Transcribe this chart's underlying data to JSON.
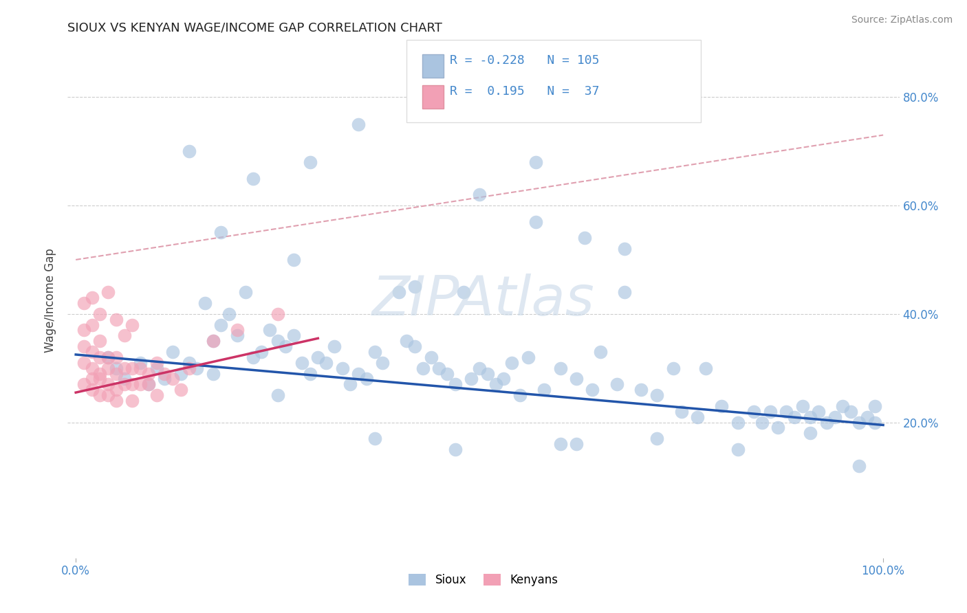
{
  "title": "SIOUX VS KENYAN WAGE/INCOME GAP CORRELATION CHART",
  "source_text": "Source: ZipAtlas.com",
  "ylabel": "Wage/Income Gap",
  "xlim": [
    -0.01,
    1.02
  ],
  "ylim": [
    -0.05,
    0.9
  ],
  "ytick_labels": [
    "20.0%",
    "40.0%",
    "60.0%",
    "80.0%"
  ],
  "ytick_values": [
    0.2,
    0.4,
    0.6,
    0.8
  ],
  "xtick_labels": [
    "0.0%",
    "100.0%"
  ],
  "xtick_values": [
    0.0,
    1.0
  ],
  "blue_R": -0.228,
  "blue_N": 105,
  "pink_R": 0.195,
  "pink_N": 37,
  "blue_color": "#aac4e0",
  "pink_color": "#f2a0b5",
  "blue_line_color": "#2255aa",
  "pink_line_color": "#cc3366",
  "dashed_line_color": "#e0a0b0",
  "watermark": "ZIPAtlas",
  "watermark_color": "#c8d8e8",
  "legend_text_color": "#4488cc",
  "background_color": "#ffffff",
  "blue_line_x0": 0.0,
  "blue_line_y0": 0.325,
  "blue_line_x1": 1.0,
  "blue_line_y1": 0.195,
  "pink_line_x0": 0.0,
  "pink_line_y0": 0.255,
  "pink_line_x1": 0.3,
  "pink_line_y1": 0.355,
  "dashed_line_x0": 0.0,
  "dashed_line_y0": 0.5,
  "dashed_line_x1": 1.0,
  "dashed_line_y1": 0.73,
  "blue_x": [
    0.04,
    0.05,
    0.06,
    0.08,
    0.09,
    0.1,
    0.11,
    0.12,
    0.13,
    0.14,
    0.15,
    0.16,
    0.17,
    0.17,
    0.18,
    0.19,
    0.2,
    0.21,
    0.22,
    0.23,
    0.24,
    0.25,
    0.26,
    0.27,
    0.28,
    0.29,
    0.3,
    0.31,
    0.32,
    0.33,
    0.34,
    0.35,
    0.36,
    0.37,
    0.38,
    0.4,
    0.41,
    0.42,
    0.43,
    0.44,
    0.45,
    0.46,
    0.47,
    0.48,
    0.49,
    0.5,
    0.51,
    0.52,
    0.53,
    0.54,
    0.55,
    0.56,
    0.57,
    0.58,
    0.6,
    0.62,
    0.63,
    0.64,
    0.65,
    0.67,
    0.68,
    0.7,
    0.72,
    0.74,
    0.75,
    0.77,
    0.78,
    0.8,
    0.82,
    0.84,
    0.85,
    0.86,
    0.87,
    0.88,
    0.89,
    0.9,
    0.91,
    0.92,
    0.93,
    0.94,
    0.95,
    0.96,
    0.97,
    0.98,
    0.99,
    0.99,
    0.14,
    0.22,
    0.29,
    0.35,
    0.42,
    0.5,
    0.57,
    0.62,
    0.68,
    0.18,
    0.27,
    0.37,
    0.47,
    0.6,
    0.72,
    0.82,
    0.91,
    0.97,
    0.25
  ],
  "blue_y": [
    0.32,
    0.3,
    0.28,
    0.31,
    0.27,
    0.3,
    0.28,
    0.33,
    0.29,
    0.31,
    0.3,
    0.42,
    0.29,
    0.35,
    0.38,
    0.4,
    0.36,
    0.44,
    0.32,
    0.33,
    0.37,
    0.35,
    0.34,
    0.36,
    0.31,
    0.29,
    0.32,
    0.31,
    0.34,
    0.3,
    0.27,
    0.29,
    0.28,
    0.33,
    0.31,
    0.44,
    0.35,
    0.34,
    0.3,
    0.32,
    0.3,
    0.29,
    0.27,
    0.44,
    0.28,
    0.3,
    0.29,
    0.27,
    0.28,
    0.31,
    0.25,
    0.32,
    0.57,
    0.26,
    0.3,
    0.28,
    0.54,
    0.26,
    0.33,
    0.27,
    0.44,
    0.26,
    0.25,
    0.3,
    0.22,
    0.21,
    0.3,
    0.23,
    0.2,
    0.22,
    0.2,
    0.22,
    0.19,
    0.22,
    0.21,
    0.23,
    0.21,
    0.22,
    0.2,
    0.21,
    0.23,
    0.22,
    0.2,
    0.21,
    0.2,
    0.23,
    0.7,
    0.65,
    0.68,
    0.75,
    0.45,
    0.62,
    0.68,
    0.16,
    0.52,
    0.55,
    0.5,
    0.17,
    0.15,
    0.16,
    0.17,
    0.15,
    0.18,
    0.12,
    0.25
  ],
  "pink_x": [
    0.01,
    0.01,
    0.01,
    0.02,
    0.02,
    0.02,
    0.02,
    0.03,
    0.03,
    0.03,
    0.03,
    0.04,
    0.04,
    0.04,
    0.04,
    0.05,
    0.05,
    0.05,
    0.05,
    0.06,
    0.06,
    0.07,
    0.07,
    0.07,
    0.08,
    0.08,
    0.09,
    0.09,
    0.1,
    0.1,
    0.11,
    0.12,
    0.13,
    0.14,
    0.17,
    0.2,
    0.25
  ],
  "pink_y": [
    0.34,
    0.31,
    0.27,
    0.3,
    0.28,
    0.33,
    0.26,
    0.29,
    0.32,
    0.28,
    0.25,
    0.3,
    0.27,
    0.32,
    0.25,
    0.29,
    0.32,
    0.26,
    0.24,
    0.3,
    0.27,
    0.3,
    0.27,
    0.24,
    0.3,
    0.27,
    0.29,
    0.27,
    0.31,
    0.25,
    0.29,
    0.28,
    0.26,
    0.3,
    0.35,
    0.37,
    0.4
  ],
  "pink_extra_x": [
    0.01,
    0.01,
    0.02,
    0.02,
    0.03,
    0.03,
    0.04,
    0.05,
    0.06,
    0.07
  ],
  "pink_extra_y": [
    0.42,
    0.37,
    0.43,
    0.38,
    0.4,
    0.35,
    0.44,
    0.39,
    0.36,
    0.38
  ]
}
